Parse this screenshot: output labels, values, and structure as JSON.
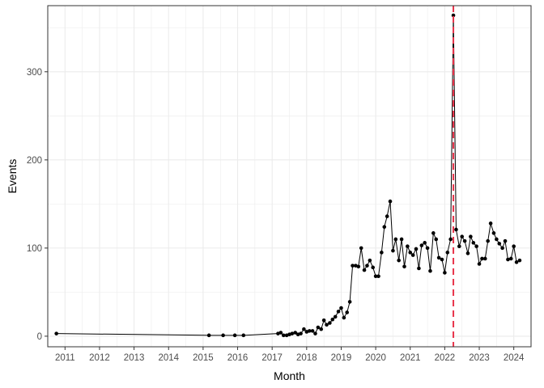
{
  "chart_data": {
    "type": "line",
    "xlabel": "Month",
    "ylabel": "Events",
    "xlim": [
      2010.5,
      2024.5
    ],
    "ylim": [
      -12,
      375
    ],
    "x_ticks": [
      2011,
      2012,
      2013,
      2014,
      2015,
      2016,
      2017,
      2018,
      2019,
      2020,
      2021,
      2022,
      2023,
      2024
    ],
    "x_tick_labels": [
      "2011",
      "2012",
      "2013",
      "2014",
      "2015",
      "2016",
      "2017",
      "2018",
      "2019",
      "2020",
      "2021",
      "2022",
      "2023",
      "2024"
    ],
    "y_ticks": [
      0,
      100,
      200,
      300
    ],
    "y_tick_labels": [
      "0",
      "100",
      "200",
      "300"
    ],
    "grid": true,
    "legend": "none",
    "colors": {
      "line": "#000000",
      "points": "#000000",
      "reference_line": "#e8334a",
      "grid": "#ebebeb",
      "panel_border": "#333333"
    },
    "reference_line": {
      "x": 2022.25,
      "style": "dashed"
    },
    "series": [
      {
        "points": [
          [
            2010.75,
            3
          ],
          [
            2015.17,
            1
          ],
          [
            2015.58,
            1
          ],
          [
            2015.92,
            1
          ],
          [
            2016.17,
            1
          ],
          [
            2017.17,
            3
          ],
          [
            2017.25,
            4
          ],
          [
            2017.33,
            1
          ],
          [
            2017.42,
            1
          ],
          [
            2017.5,
            2
          ],
          [
            2017.58,
            3
          ],
          [
            2017.67,
            4
          ],
          [
            2017.75,
            2
          ],
          [
            2017.83,
            3
          ],
          [
            2017.92,
            8
          ],
          [
            2018.0,
            5
          ],
          [
            2018.08,
            6
          ],
          [
            2018.17,
            6
          ],
          [
            2018.25,
            3
          ],
          [
            2018.33,
            10
          ],
          [
            2018.42,
            8
          ],
          [
            2018.5,
            18
          ],
          [
            2018.58,
            13
          ],
          [
            2018.67,
            15
          ],
          [
            2018.75,
            19
          ],
          [
            2018.83,
            22
          ],
          [
            2018.92,
            28
          ],
          [
            2019.0,
            32
          ],
          [
            2019.08,
            21
          ],
          [
            2019.17,
            27
          ],
          [
            2019.25,
            39
          ],
          [
            2019.33,
            80
          ],
          [
            2019.42,
            80
          ],
          [
            2019.5,
            79
          ],
          [
            2019.58,
            100
          ],
          [
            2019.67,
            75
          ],
          [
            2019.75,
            80
          ],
          [
            2019.83,
            86
          ],
          [
            2019.92,
            78
          ],
          [
            2020.0,
            68
          ],
          [
            2020.08,
            68
          ],
          [
            2020.17,
            95
          ],
          [
            2020.25,
            124
          ],
          [
            2020.33,
            136
          ],
          [
            2020.42,
            153
          ],
          [
            2020.5,
            97
          ],
          [
            2020.58,
            110
          ],
          [
            2020.67,
            86
          ],
          [
            2020.75,
            110
          ],
          [
            2020.83,
            79
          ],
          [
            2020.92,
            102
          ],
          [
            2021.0,
            95
          ],
          [
            2021.08,
            92
          ],
          [
            2021.17,
            99
          ],
          [
            2021.25,
            77
          ],
          [
            2021.33,
            103
          ],
          [
            2021.42,
            106
          ],
          [
            2021.5,
            100
          ],
          [
            2021.58,
            74
          ],
          [
            2021.67,
            117
          ],
          [
            2021.75,
            110
          ],
          [
            2021.83,
            89
          ],
          [
            2021.92,
            87
          ],
          [
            2022.0,
            72
          ],
          [
            2022.08,
            95
          ],
          [
            2022.17,
            110
          ],
          [
            2022.25,
            364
          ],
          [
            2022.33,
            121
          ],
          [
            2022.42,
            102
          ],
          [
            2022.5,
            113
          ],
          [
            2022.58,
            108
          ],
          [
            2022.67,
            94
          ],
          [
            2022.75,
            113
          ],
          [
            2022.83,
            106
          ],
          [
            2022.92,
            102
          ],
          [
            2023.0,
            82
          ],
          [
            2023.08,
            88
          ],
          [
            2023.17,
            88
          ],
          [
            2023.25,
            108
          ],
          [
            2023.33,
            128
          ],
          [
            2023.42,
            117
          ],
          [
            2023.5,
            110
          ],
          [
            2023.58,
            105
          ],
          [
            2023.67,
            100
          ],
          [
            2023.75,
            108
          ],
          [
            2023.83,
            87
          ],
          [
            2023.92,
            88
          ],
          [
            2024.0,
            102
          ],
          [
            2024.08,
            84
          ],
          [
            2024.17,
            86
          ]
        ]
      }
    ]
  }
}
